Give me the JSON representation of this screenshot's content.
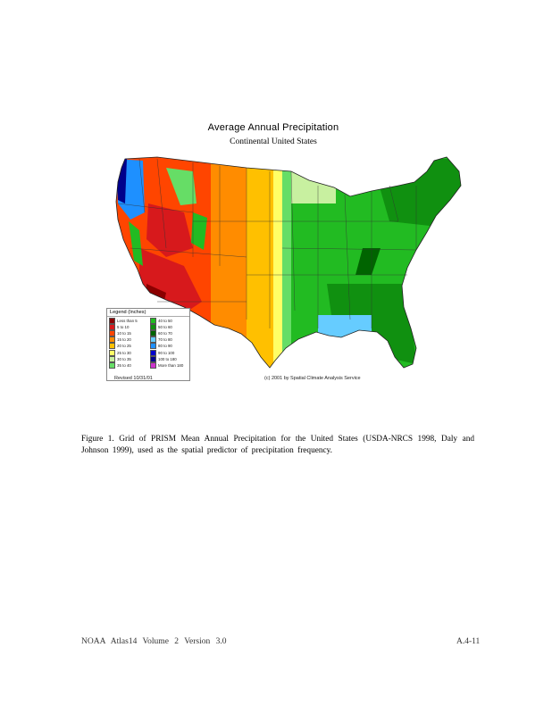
{
  "map": {
    "title": "Average Annual Precipitation",
    "subtitle": "Continental United States",
    "legend": {
      "title": "Legend (Inches)",
      "items": [
        {
          "label": "Less than 5",
          "color": "#8b0000"
        },
        {
          "label": "5 to 10",
          "color": "#d7191c"
        },
        {
          "label": "10 to 15",
          "color": "#ff4500"
        },
        {
          "label": "15 to 20",
          "color": "#ff8c00"
        },
        {
          "label": "20 to 25",
          "color": "#ffc000"
        },
        {
          "label": "25 to 30",
          "color": "#ffff66"
        },
        {
          "label": "30 to 35",
          "color": "#c8f0a0"
        },
        {
          "label": "35 to 40",
          "color": "#66dd66"
        },
        {
          "label": "40 to 50",
          "color": "#22bb22"
        },
        {
          "label": "50 to 60",
          "color": "#109010"
        },
        {
          "label": "60 to 70",
          "color": "#006400"
        },
        {
          "label": "70 to 80",
          "color": "#66ccff"
        },
        {
          "label": "80 to 90",
          "color": "#1e90ff"
        },
        {
          "label": "90 to 100",
          "color": "#0000cd"
        },
        {
          "label": "100 to 180",
          "color": "#00008b"
        },
        {
          "label": "More than 180",
          "color": "#cc33cc"
        }
      ]
    },
    "date": "Revised 10/31/01",
    "credit": "(c) 2001 by Spatial Climate Analysis Service"
  },
  "caption": "Figure 1. Grid of PRISM Mean Annual Precipitation for the United States (USDA-NRCS 1998, Daly and Johnson 1999), used as the spatial predictor of precipitation frequency.",
  "footer": {
    "left": "NOAA Atlas14 Volume 2 Version 3.0",
    "right": "A.4-11"
  }
}
